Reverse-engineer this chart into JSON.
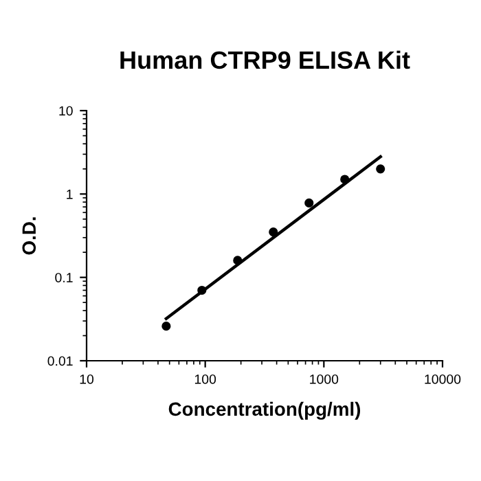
{
  "chart_data": {
    "type": "scatter",
    "title": "Human CTRP9 ELISA Kit",
    "xlabel": "Concentration(pg/ml)",
    "ylabel": "O.D.",
    "log": "xy",
    "xlim": [
      10,
      10000
    ],
    "xticks": [
      10,
      100,
      1000,
      10000
    ],
    "ylim": [
      0.01,
      10
    ],
    "yticks": [
      0.01,
      0.1,
      1,
      10
    ],
    "grid": false,
    "legend": false,
    "series": [
      {
        "color": "#000000",
        "marker": "circle",
        "x": [
          46.9,
          93.75,
          187.5,
          375,
          750,
          1500,
          3000
        ],
        "values": [
          0.026,
          0.07,
          0.16,
          0.35,
          0.78,
          1.5,
          2.0
        ]
      },
      {
        "type": "line",
        "color": "#000000",
        "x": [
          46.9,
          3000
        ],
        "values": [
          0.032,
          2.8
        ],
        "line_style": "solid",
        "marker": "none"
      }
    ]
  }
}
